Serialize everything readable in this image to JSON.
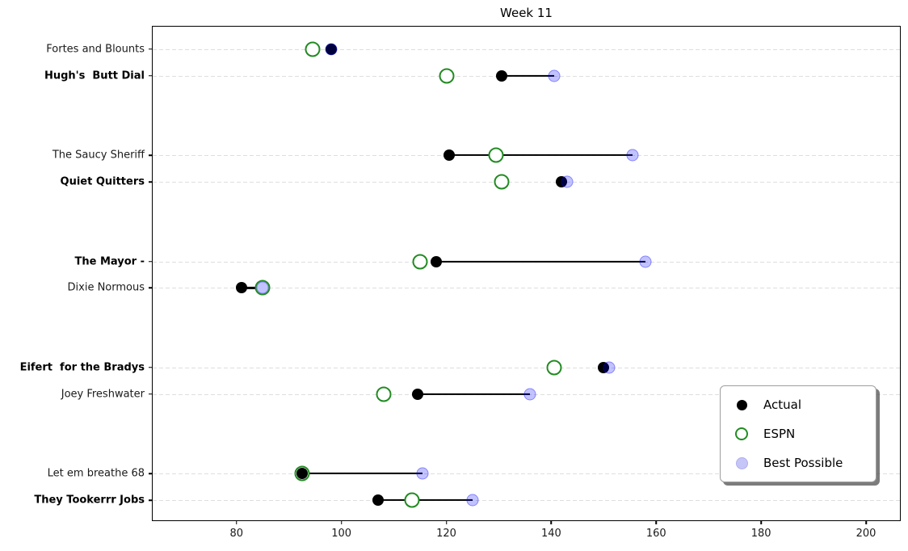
{
  "title": "Week 11",
  "colors": {
    "actual": "#000000",
    "espn": "#228B22",
    "best": "#0000ff",
    "best_alpha": 0.24,
    "grid": "#dedede",
    "spine": "#000000"
  },
  "legend": {
    "items": [
      {
        "label": "Actual",
        "marker": "black-filled-circle"
      },
      {
        "label": "ESPN",
        "marker": "green-open-circle"
      },
      {
        "label": "Best Possible",
        "marker": "lavender-filled-circle"
      }
    ]
  },
  "chart_data": {
    "type": "scatter",
    "title": "Week 11",
    "xlabel": "",
    "ylabel": "",
    "xlim": [
      64,
      206.5
    ],
    "x_ticks": [
      80,
      100,
      120,
      140,
      160,
      180,
      200
    ],
    "grid": "horizontal-dashed",
    "legend_position": "lower right",
    "series_names": [
      "Actual",
      "ESPN",
      "Best Possible"
    ],
    "row_slots": [
      0,
      1,
      4,
      5,
      8,
      9,
      12,
      13,
      16,
      17
    ],
    "total_slots": 18,
    "rows": [
      {
        "team": "Fortes and Blounts",
        "bold": false,
        "actual": 98,
        "espn": 94.5,
        "best": 98
      },
      {
        "team": "Hugh's  Butt Dial",
        "bold": true,
        "actual": 130.5,
        "espn": 120,
        "best": 140.5
      },
      {
        "team": "The Saucy Sheriff",
        "bold": false,
        "actual": 120.5,
        "espn": 129.5,
        "best": 155.5
      },
      {
        "team": "Quiet Quitters",
        "bold": true,
        "actual": 142,
        "espn": 130.5,
        "best": 143
      },
      {
        "team": "The Mayor -",
        "bold": true,
        "actual": 118,
        "espn": 115,
        "best": 158
      },
      {
        "team": "Dixie Normous",
        "bold": false,
        "actual": 81,
        "espn": 85,
        "best": 85
      },
      {
        "team": "Eifert  for the Bradys",
        "bold": true,
        "actual": 150,
        "espn": 140.5,
        "best": 151
      },
      {
        "team": "Joey Freshwater",
        "bold": false,
        "actual": 114.5,
        "espn": 108,
        "best": 136
      },
      {
        "team": "Let em breathe 68",
        "bold": false,
        "actual": 92.5,
        "espn": 92.5,
        "best": 115.5
      },
      {
        "team": "They Tookerrr Jobs",
        "bold": true,
        "actual": 107,
        "espn": 113.5,
        "best": 125
      }
    ]
  }
}
